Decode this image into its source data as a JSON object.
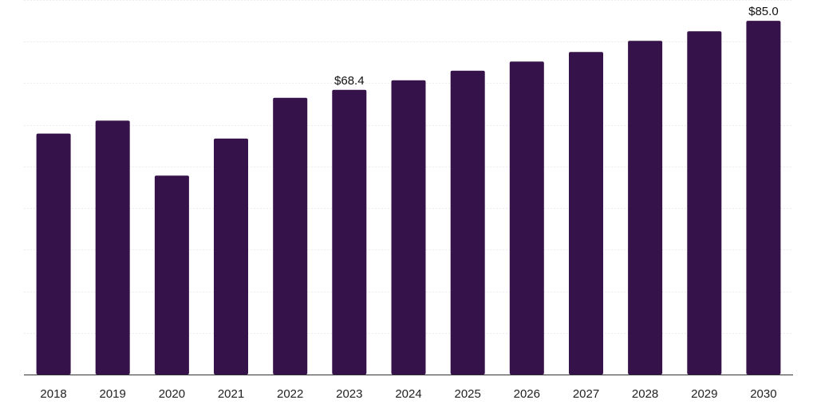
{
  "chart_data": {
    "type": "bar",
    "categories": [
      "2018",
      "2019",
      "2020",
      "2021",
      "2022",
      "2023",
      "2024",
      "2025",
      "2026",
      "2027",
      "2028",
      "2029",
      "2030"
    ],
    "values": [
      57.9,
      61.0,
      47.8,
      56.7,
      66.5,
      68.4,
      70.7,
      73.0,
      75.2,
      77.5,
      80.2,
      82.5,
      85.0
    ],
    "data_labels": [
      "",
      "",
      "",
      "",
      "",
      "$68.4",
      "",
      "",
      "",
      "",
      "",
      "",
      "$85.0"
    ],
    "title": "",
    "xlabel": "",
    "ylabel": "",
    "ylim": [
      0,
      90
    ],
    "grid": true,
    "bar_color": "#36124a"
  }
}
